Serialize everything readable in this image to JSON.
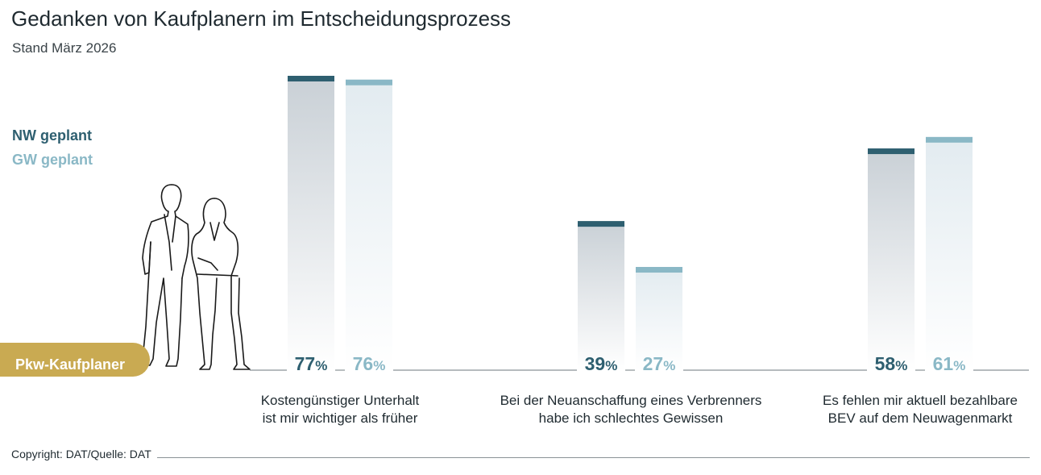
{
  "title": "Gedanken von Kaufplanern im Entscheidungsprozess",
  "subtitle": "Stand März 2026",
  "legend": [
    {
      "label": "NW geplant",
      "color": "#2e5f70"
    },
    {
      "label": "GW geplant",
      "color": "#8ab8c6"
    }
  ],
  "category_badge": {
    "label": "Pkw-Kaufplaner",
    "color": "#c9aa52"
  },
  "footer": {
    "copyright": "Copyright: DAT/Quelle: DAT"
  },
  "chart_data": {
    "type": "bar",
    "categories": [
      [
        "Kostengünstiger Unterhalt",
        "ist mir wichtiger als früher"
      ],
      [
        "Bei der Neuanschaffung eines Verbrenners",
        "habe ich schlechtes Gewissen"
      ],
      [
        "Es fehlen mir aktuell bezahlbare",
        "BEV auf dem Neuwagenmarkt"
      ]
    ],
    "series": [
      {
        "name": "NW geplant",
        "values": [
          77,
          39,
          58
        ],
        "color": "#2e5f70"
      },
      {
        "name": "GW geplant",
        "values": [
          76,
          27,
          61
        ],
        "color": "#8ab8c6"
      }
    ],
    "unit": "%",
    "ylim": [
      0,
      77
    ],
    "grid": false
  }
}
